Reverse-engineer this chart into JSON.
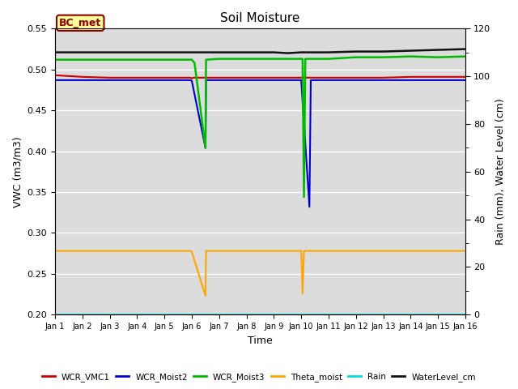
{
  "title": "Soil Moisture",
  "xlabel": "Time",
  "ylabel_left": "VWC (m3/m3)",
  "ylabel_right": "Rain (mm), Water Level (cm)",
  "ylim_left": [
    0.2,
    0.55
  ],
  "ylim_right": [
    0,
    120
  ],
  "xlim_days": [
    0,
    15
  ],
  "annotation_text": "BC_met",
  "annotation_bg": "#FFFF99",
  "annotation_border": "#8B0000",
  "bg_color": "#DCDCDC",
  "x_ticks_labels": [
    "Jan 1",
    "Jan 2",
    "Jan 3",
    "Jan 4",
    "Jan 5",
    "Jan 6",
    "Jan 7",
    "Jan 8",
    "Jan 9",
    "Jan 10",
    "Jan 11",
    "Jan 12",
    "Jan 13",
    "Jan 14",
    "Jan 15",
    "Jan 16"
  ],
  "series": {
    "WCR_VMC1": {
      "color": "#CC0000",
      "linewidth": 1.5,
      "data_x": [
        0,
        1,
        2,
        3,
        4,
        4.95,
        5,
        5.05,
        6,
        7,
        8,
        9,
        9.0,
        9.95,
        10,
        11,
        12,
        13,
        14,
        15
      ],
      "data_y": [
        0.493,
        0.491,
        0.49,
        0.49,
        0.49,
        0.49,
        0.489,
        0.49,
        0.49,
        0.49,
        0.49,
        0.49,
        0.49,
        0.49,
        0.49,
        0.49,
        0.49,
        0.491,
        0.491,
        0.491
      ]
    },
    "WCR_Moist2": {
      "color": "#0000CC",
      "linewidth": 1.5,
      "data_x": [
        0,
        1,
        2,
        3,
        4,
        4.95,
        5,
        5.5,
        5.52,
        6,
        7,
        8,
        9,
        9.3,
        9.35,
        9.7,
        10,
        11,
        12,
        13,
        14,
        15
      ],
      "data_y": [
        0.487,
        0.487,
        0.487,
        0.487,
        0.487,
        0.487,
        0.486,
        0.404,
        0.487,
        0.487,
        0.487,
        0.487,
        0.487,
        0.332,
        0.487,
        0.487,
        0.487,
        0.487,
        0.487,
        0.487,
        0.487,
        0.487
      ]
    },
    "WCR_Moist3": {
      "color": "#00BB00",
      "linewidth": 1.8,
      "data_x": [
        0,
        1,
        2,
        3,
        4,
        4.95,
        5,
        5.1,
        5.5,
        5.52,
        6,
        7,
        8,
        9,
        9.05,
        9.1,
        9.15,
        9.5,
        10,
        11,
        12,
        13,
        14,
        15
      ],
      "data_y": [
        0.512,
        0.512,
        0.512,
        0.512,
        0.512,
        0.512,
        0.512,
        0.508,
        0.404,
        0.512,
        0.513,
        0.513,
        0.513,
        0.513,
        0.513,
        0.344,
        0.513,
        0.513,
        0.513,
        0.515,
        0.515,
        0.516,
        0.515,
        0.516
      ]
    },
    "Theta_moist": {
      "color": "#FFA500",
      "linewidth": 1.5,
      "data_x": [
        0,
        1,
        2,
        3,
        4,
        4.95,
        5,
        5.5,
        5.52,
        6,
        7,
        8,
        9,
        9.05,
        9.1,
        9.5,
        10,
        11,
        12,
        13,
        14,
        15
      ],
      "data_y": [
        0.278,
        0.278,
        0.278,
        0.278,
        0.278,
        0.278,
        0.277,
        0.223,
        0.278,
        0.278,
        0.278,
        0.278,
        0.278,
        0.226,
        0.278,
        0.278,
        0.278,
        0.278,
        0.278,
        0.278,
        0.278,
        0.278
      ]
    },
    "Rain": {
      "color": "#00DDDD",
      "linewidth": 1.2,
      "data_x": [
        0,
        15
      ],
      "data_y": [
        0.2,
        0.2
      ]
    },
    "WaterLevel_cm": {
      "color": "#111111",
      "linewidth": 1.8,
      "data_x": [
        0,
        1,
        2,
        3,
        4,
        4.95,
        5,
        5.05,
        5.5,
        6,
        7,
        8,
        8.5,
        9,
        9.5,
        10,
        11,
        12,
        13,
        14,
        15
      ],
      "data_y": [
        0.521,
        0.521,
        0.521,
        0.521,
        0.521,
        0.521,
        0.521,
        0.521,
        0.521,
        0.521,
        0.521,
        0.521,
        0.52,
        0.521,
        0.521,
        0.521,
        0.522,
        0.522,
        0.523,
        0.524,
        0.525
      ]
    }
  },
  "legend_entries": [
    "WCR_VMC1",
    "WCR_Moist2",
    "WCR_Moist3",
    "Theta_moist",
    "Rain",
    "WaterLevel_cm"
  ],
  "legend_colors": [
    "#CC0000",
    "#0000CC",
    "#00BB00",
    "#FFA500",
    "#00DDDD",
    "#111111"
  ],
  "right_yticks": [
    0,
    20,
    40,
    60,
    80,
    100,
    120
  ],
  "right_ytick_minor": [
    10,
    30,
    50,
    70,
    90,
    110
  ]
}
